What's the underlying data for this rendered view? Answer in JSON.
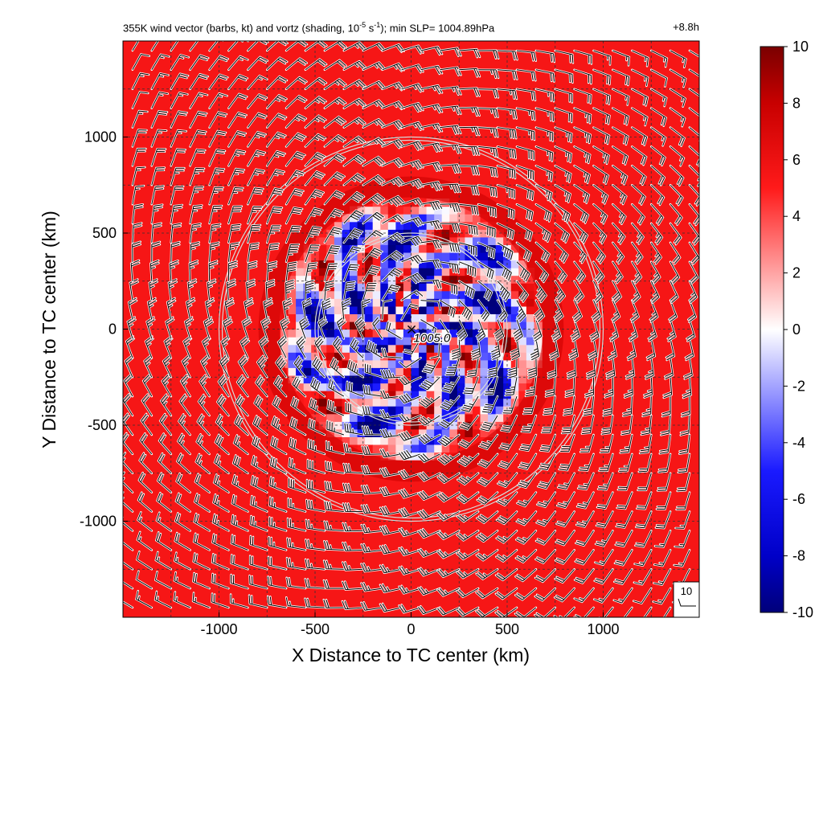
{
  "title": {
    "lead": "355K wind vector (barbs, kt) and vortz (shading, 10",
    "exp1": "-5",
    "mid": " s",
    "exp2": "-1",
    "tail": "); min SLP= 1004.89hPa",
    "time": "+8.8h"
  },
  "colors": {
    "background_positive": "#ee3b3b",
    "ring": "#d9d9d9",
    "grid": "#333333",
    "barb": "#000000",
    "colormap_low": "#00008b",
    "colormap_mid": "#ffffff",
    "colormap_high": "#8b0000"
  },
  "chart_data": {
    "type": "heatmap",
    "field": "relative vorticity (vortz) with wind barbs",
    "xlabel": "X Distance to TC center (km)",
    "ylabel": "Y Distance to TC center (km)",
    "xlim": [
      -1500,
      1500
    ],
    "ylim": [
      -1500,
      1500
    ],
    "x_ticks": [
      -1000,
      -500,
      0,
      500,
      1000
    ],
    "y_ticks": [
      1000,
      500,
      0,
      -500,
      -1000
    ],
    "x_tick_labels": [
      "-1000",
      "-500",
      "0",
      "500",
      "1000"
    ],
    "y_tick_labels": [
      "1000",
      "500",
      "0",
      "-500",
      "-1000"
    ],
    "grid": true,
    "grid_spacing_km": 250,
    "range_rings_km": [
      500,
      1000
    ],
    "background_vorticity": 5.5,
    "disturbed_region_radius_km": 700,
    "colorbar": {
      "min": -10,
      "max": 10,
      "ticks": [
        10,
        8,
        6,
        4,
        2,
        0,
        -2,
        -4,
        -6,
        -8,
        -10
      ],
      "tick_labels": [
        "10",
        "8",
        "6",
        "4",
        "2",
        "0",
        "-2",
        "-4",
        "-6",
        "-8",
        "-10"
      ]
    },
    "center_marker": {
      "x": 0,
      "y": 0,
      "symbol": "×",
      "label": "1005.0"
    },
    "barb_grid_spacing_km": 100,
    "barb_reference": {
      "label": "10",
      "speed_kt": 10
    },
    "min_slp_hpa": 1004.89,
    "forecast_hour": "+8.8h"
  }
}
